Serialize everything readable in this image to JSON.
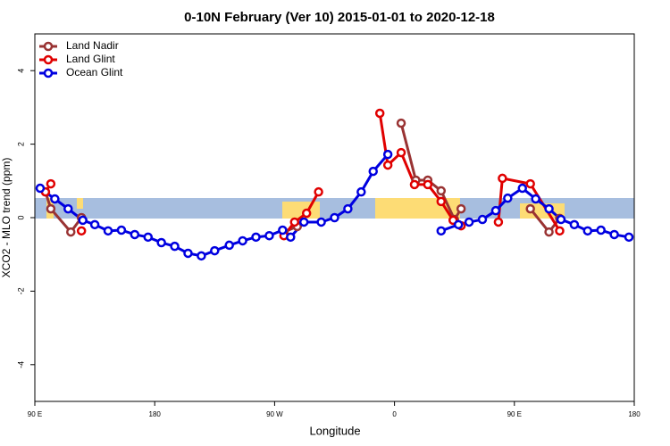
{
  "chart_data": {
    "type": "line",
    "title": "0-10N February (Ver 10)   2015-01-01 to 2020-12-18",
    "x_label": "Longitude",
    "y_label": "XCO2 - MLO trend (ppm)",
    "xlim": [
      90,
      540
    ],
    "xticks": [
      {
        "value": 90,
        "label": "90 E"
      },
      {
        "value": 180,
        "label": "180"
      },
      {
        "value": 270,
        "label": "90 W"
      },
      {
        "value": 360,
        "label": "0"
      },
      {
        "value": 450,
        "label": "90 E"
      },
      {
        "value": 540,
        "label": "180"
      }
    ],
    "ylim": [
      -5,
      5
    ],
    "yticks": [
      -4,
      -2,
      0,
      2,
      4
    ],
    "legend": "top-left",
    "series": [
      {
        "name": "Land Nadir",
        "color": "#993333",
        "x": [
          98,
          102,
          117,
          125,
          null,
          277,
          287,
          null,
          365,
          376,
          385,
          395,
          405,
          410,
          null,
          462,
          476,
          484
        ],
        "values": [
          0.7,
          0.24,
          -0.39,
          0,
          null,
          -0.39,
          -0.24,
          null,
          2.57,
          1.02,
          1.02,
          0.73,
          -0.05,
          0.24,
          null,
          0.24,
          -0.39,
          -0.02
        ]
      },
      {
        "name": "Land Glint",
        "color": "#e00000",
        "x": [
          98,
          102,
          null,
          125,
          null,
          277,
          285,
          294,
          303,
          null,
          349,
          355,
          365,
          375,
          385,
          395,
          404,
          410,
          null,
          438,
          441,
          462,
          484
        ],
        "values": [
          0.7,
          0.92,
          null,
          -0.36,
          null,
          -0.49,
          -0.12,
          0.12,
          0.7,
          null,
          2.84,
          1.43,
          1.77,
          0.9,
          0.9,
          0.44,
          -0.07,
          -0.22,
          null,
          -0.12,
          1.07,
          0.92,
          -0.36
        ]
      },
      {
        "name": "Ocean Glint",
        "color": "#0000e0",
        "x": [
          94,
          105,
          115,
          126,
          135,
          145,
          155,
          165,
          175,
          185,
          195,
          205,
          215,
          225,
          236,
          246,
          256,
          266,
          276,
          282,
          292,
          305,
          315,
          325,
          335,
          344,
          355,
          null,
          395,
          408,
          416,
          426,
          436,
          445,
          456,
          466,
          476,
          485,
          495,
          505,
          515,
          525,
          536
        ],
        "values": [
          0.8,
          0.51,
          0.24,
          -0.07,
          -0.19,
          -0.36,
          -0.34,
          -0.46,
          -0.53,
          -0.68,
          -0.78,
          -0.97,
          -1.04,
          -0.9,
          -0.75,
          -0.63,
          -0.53,
          -0.49,
          -0.34,
          -0.53,
          -0.12,
          -0.12,
          0,
          0.24,
          0.7,
          1.26,
          1.72,
          null,
          -0.36,
          -0.19,
          -0.12,
          -0.05,
          0.19,
          0.53,
          0.8,
          0.51,
          0.24,
          -0.05,
          -0.19,
          -0.36,
          -0.34,
          -0.46,
          -0.53
        ]
      }
    ]
  }
}
